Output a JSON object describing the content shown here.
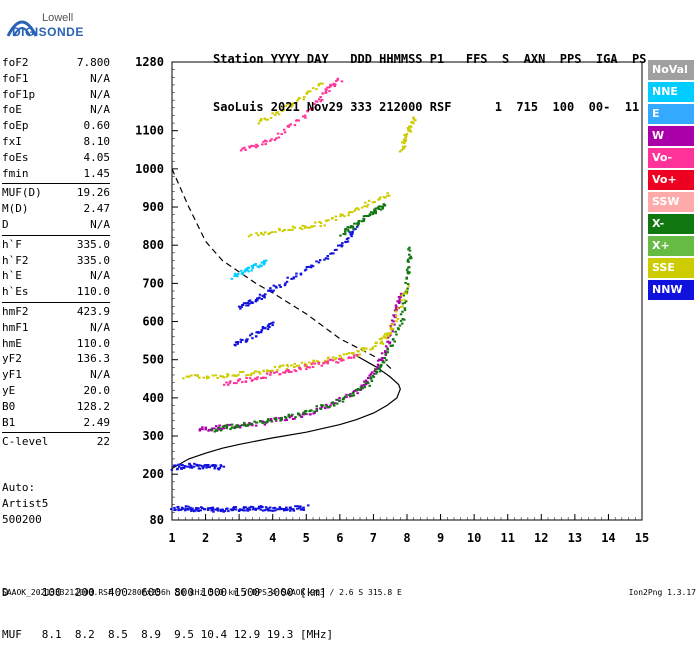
{
  "logo": {
    "line1": "Lowell",
    "line2": "DIGISONDE"
  },
  "header": {
    "line1": "Station YYYY DAY   DDD HHMMSS P1   FFS  S  AXN  PPS  IGA  PS",
    "line2": "SaoLuis 2021 Nov29 333 212000 RSF      1  715  100  00-  11"
  },
  "params_groups": [
    [
      [
        "foF2",
        "7.800"
      ],
      [
        "foF1",
        "N/A"
      ],
      [
        "foF1p",
        "N/A"
      ],
      [
        "foE",
        "N/A"
      ],
      [
        "foEp",
        "0.60"
      ],
      [
        "fxI",
        "8.10"
      ],
      [
        "foEs",
        "4.05"
      ],
      [
        "fmin",
        "1.45"
      ]
    ],
    [
      [
        "MUF(D)",
        "19.26"
      ],
      [
        "M(D)",
        "2.47"
      ],
      [
        "D",
        "N/A"
      ]
    ],
    [
      [
        "h`F",
        "335.0"
      ],
      [
        "h`F2",
        "335.0"
      ],
      [
        "h`E",
        "N/A"
      ],
      [
        "h`Es",
        "110.0"
      ]
    ],
    [
      [
        "hmF2",
        "423.9"
      ],
      [
        "hmF1",
        "N/A"
      ],
      [
        "hmE",
        "110.0"
      ],
      [
        "yF2",
        "136.3"
      ],
      [
        "yF1",
        "N/A"
      ],
      [
        "yE",
        "20.0"
      ],
      [
        "B0",
        "128.2"
      ],
      [
        "B1",
        "2.49"
      ]
    ],
    [
      [
        "C-level",
        "22"
      ]
    ]
  ],
  "auto": {
    "line1": "Auto:",
    "line2": "Artist5",
    "line3": "500200"
  },
  "legend": [
    {
      "label": "NoVal",
      "color": "#a0a0a0"
    },
    {
      "label": "NNE",
      "color": "#00ccff"
    },
    {
      "label": "E",
      "color": "#33aaff"
    },
    {
      "label": "W",
      "color": "#aa00aa"
    },
    {
      "label": "Vo-",
      "color": "#ff3399"
    },
    {
      "label": "Vo+",
      "color": "#ee0022"
    },
    {
      "label": "SSW",
      "color": "#ffaaaa"
    },
    {
      "label": "X-",
      "color": "#117711"
    },
    {
      "label": "X+",
      "color": "#66bb44"
    },
    {
      "label": "SSE",
      "color": "#cccc00"
    },
    {
      "label": "NNW",
      "color": "#1111dd"
    }
  ],
  "dmuf": {
    "line1": "D     100  200  400  600  800 1000 1500 3000 [km]",
    "line2": "MUF   8.1  8.2  8.5  8.9  9.5 10.4 12.9 19.3 [MHz]"
  },
  "footer": {
    "left": "SAAOK_2021333212000.RSF / 280fx256h 50 kHz 5.0 km / DPS-4 SAAOK 903 / 2.6 S 315.8 E",
    "right": "Ion2Png 1.3.17"
  },
  "chart_data": {
    "type": "scatter",
    "xlim": [
      1,
      15
    ],
    "ylim": [
      80,
      1280
    ],
    "x_ticks": [
      1,
      2,
      3,
      4,
      5,
      6,
      7,
      8,
      9,
      10,
      11,
      12,
      13,
      14,
      15
    ],
    "y_ticks": [
      80,
      200,
      300,
      400,
      500,
      600,
      700,
      800,
      900,
      1000,
      1100,
      1280
    ],
    "profile_solid": [
      [
        1,
        215
      ],
      [
        1.5,
        240
      ],
      [
        2,
        255
      ],
      [
        2.5,
        268
      ],
      [
        3,
        278
      ],
      [
        4,
        295
      ],
      [
        5,
        310
      ],
      [
        6,
        330
      ],
      [
        6.5,
        343
      ],
      [
        7,
        360
      ],
      [
        7.4,
        380
      ],
      [
        7.7,
        400
      ],
      [
        7.8,
        423
      ],
      [
        7.75,
        435
      ],
      [
        7.5,
        455
      ],
      [
        7.1,
        480
      ],
      [
        6.5,
        510
      ]
    ],
    "profile_dashed": [
      [
        1,
        1000
      ],
      [
        1.5,
        900
      ],
      [
        2,
        810
      ],
      [
        2.5,
        760
      ],
      [
        3,
        730
      ],
      [
        3.5,
        700
      ],
      [
        4,
        675
      ],
      [
        5,
        620
      ],
      [
        6,
        555
      ],
      [
        7,
        510
      ],
      [
        7.3,
        495
      ],
      [
        7.6,
        470
      ]
    ],
    "traces": [
      {
        "name": "F-O",
        "color": "#aa00aa",
        "pts": [
          [
            1.8,
            320
          ],
          [
            2.5,
            325
          ],
          [
            3.5,
            335
          ],
          [
            4.5,
            350
          ],
          [
            5.5,
            375
          ],
          [
            6.5,
            420
          ],
          [
            7.0,
            470
          ],
          [
            7.4,
            540
          ],
          [
            7.6,
            620
          ],
          [
            7.8,
            680
          ]
        ]
      },
      {
        "name": "F-X",
        "color": "#117711",
        "pts": [
          [
            2.2,
            320
          ],
          [
            3,
            330
          ],
          [
            4,
            345
          ],
          [
            5,
            365
          ],
          [
            6,
            395
          ],
          [
            6.8,
            440
          ],
          [
            7.3,
            500
          ],
          [
            7.8,
            600
          ],
          [
            8.0,
            720
          ],
          [
            8.05,
            800
          ]
        ]
      },
      {
        "name": "F-2",
        "color": "#cccc00",
        "pts": [
          [
            1.3,
            455
          ],
          [
            2.5,
            460
          ],
          [
            3.5,
            470
          ],
          [
            4.5,
            485
          ],
          [
            5.5,
            500
          ],
          [
            6.5,
            520
          ],
          [
            7.2,
            550
          ],
          [
            7.5,
            580
          ],
          [
            8.0,
            700
          ]
        ]
      },
      {
        "name": "F-2b",
        "color": "#ff3399",
        "pts": [
          [
            2.5,
            440
          ],
          [
            3.5,
            455
          ],
          [
            4.5,
            475
          ],
          [
            5.5,
            495
          ],
          [
            6.5,
            510
          ]
        ]
      },
      {
        "name": "M3",
        "color": "#1111dd",
        "pts": [
          [
            3,
            640
          ],
          [
            3.5,
            660
          ],
          [
            4,
            690
          ],
          [
            5,
            740
          ],
          [
            6,
            800
          ],
          [
            6.5,
            850
          ]
        ]
      },
      {
        "name": "M3b",
        "color": "#cccc00",
        "pts": [
          [
            3.3,
            830
          ],
          [
            4.5,
            845
          ],
          [
            5.5,
            860
          ],
          [
            6.5,
            900
          ],
          [
            7.5,
            940
          ]
        ]
      },
      {
        "name": "M4",
        "color": "#ff3399",
        "pts": [
          [
            3,
            1050
          ],
          [
            4,
            1080
          ],
          [
            5,
            1150
          ],
          [
            5.5,
            1200
          ],
          [
            6,
            1240
          ]
        ]
      },
      {
        "name": "M4b",
        "color": "#cccc00",
        "pts": [
          [
            3.5,
            1120
          ],
          [
            4.5,
            1170
          ],
          [
            5.5,
            1230
          ]
        ]
      },
      {
        "name": "Es",
        "color": "#1111dd",
        "pts": [
          [
            1,
            115
          ],
          [
            1.5,
            112
          ],
          [
            2,
            110
          ],
          [
            2.5,
            110
          ],
          [
            3,
            112
          ],
          [
            3.5,
            115
          ],
          [
            4,
            110
          ],
          [
            4.5,
            112
          ],
          [
            5,
            115
          ]
        ]
      },
      {
        "name": "Es2",
        "color": "#1111dd",
        "pts": [
          [
            1,
            220
          ],
          [
            1.5,
            225
          ],
          [
            2,
            222
          ],
          [
            2.5,
            220
          ]
        ]
      },
      {
        "name": "M5",
        "color": "#117711",
        "pts": [
          [
            6,
            830
          ],
          [
            6.5,
            860
          ],
          [
            7,
            890
          ],
          [
            7.3,
            910
          ]
        ]
      },
      {
        "name": "M6",
        "color": "#cccc00",
        "pts": [
          [
            7.8,
            1050
          ],
          [
            8.0,
            1100
          ],
          [
            8.2,
            1140
          ]
        ]
      },
      {
        "name": "M7",
        "color": "#1111dd",
        "pts": [
          [
            2.8,
            540
          ],
          [
            3.5,
            570
          ],
          [
            4,
            600
          ]
        ]
      },
      {
        "name": "M8",
        "color": "#00ccff",
        "pts": [
          [
            2.8,
            720
          ],
          [
            3.3,
            740
          ],
          [
            3.8,
            760
          ]
        ]
      }
    ]
  }
}
